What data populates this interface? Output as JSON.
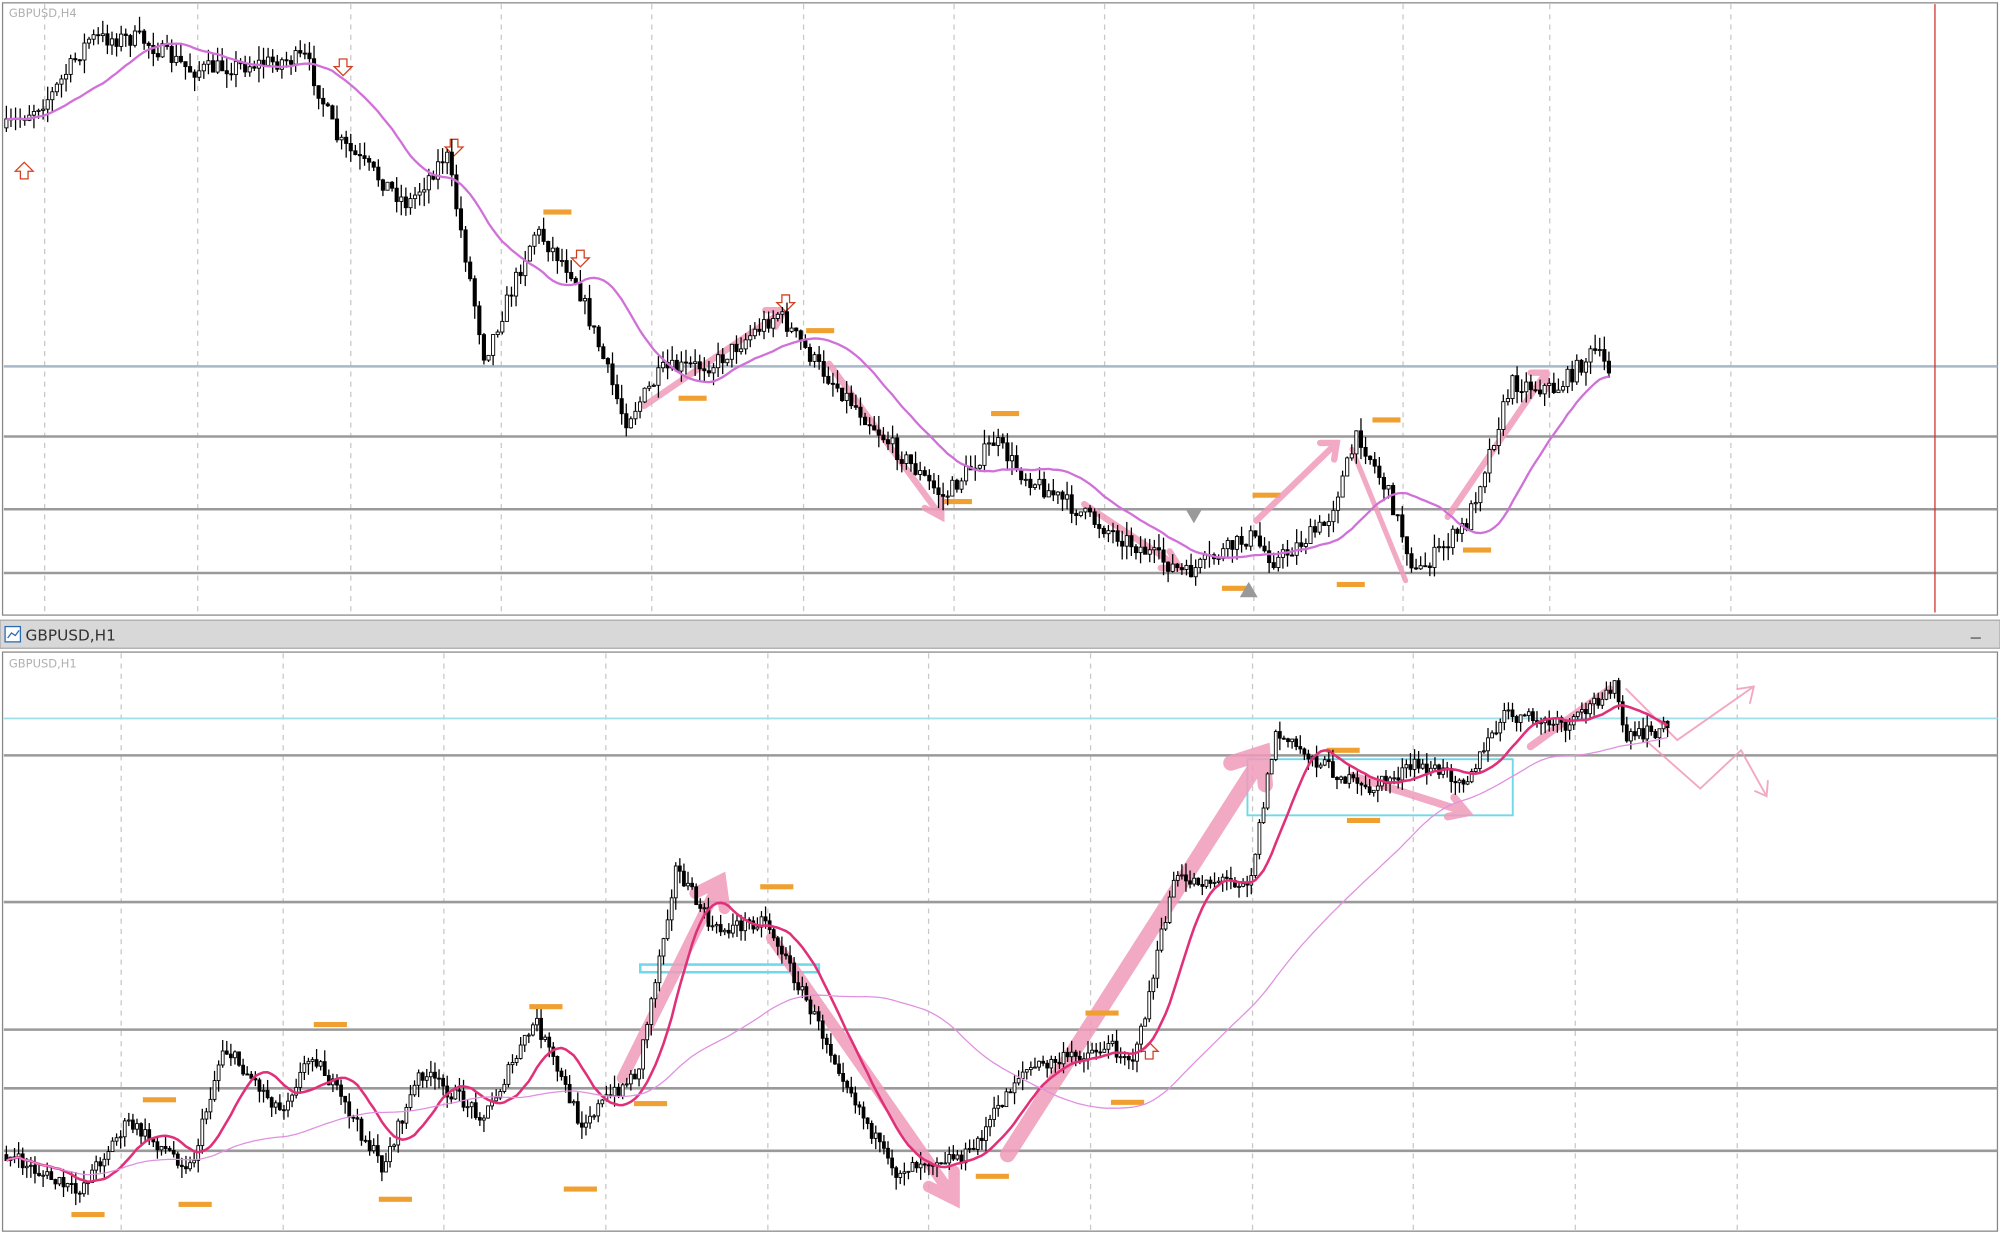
{
  "windows": [
    {
      "label": "GBPUSD,H4"
    },
    {
      "title": "GBPUSD,H1",
      "label": "GBPUSD,H1"
    }
  ]
}
